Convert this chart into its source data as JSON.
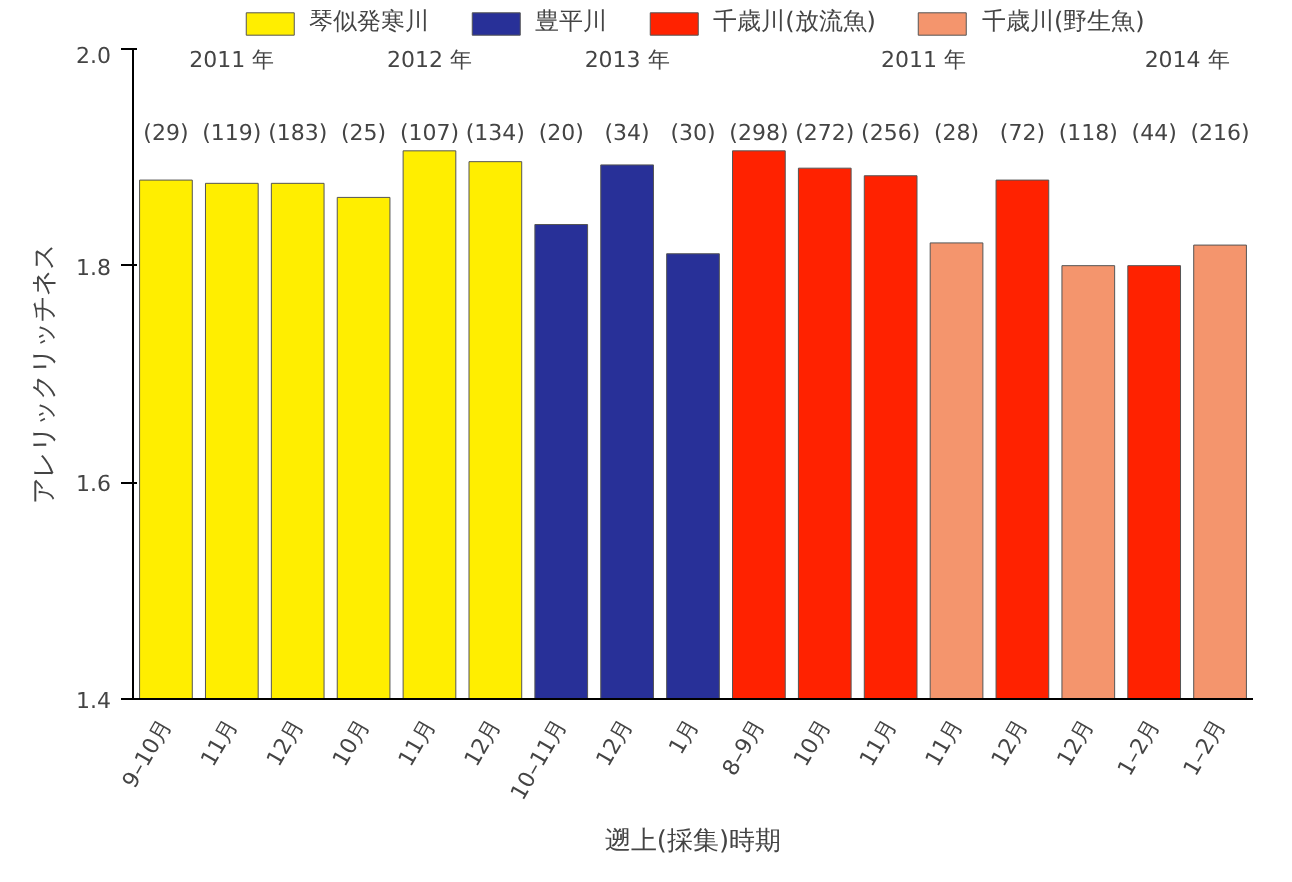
{
  "chart_data": {
    "type": "bar",
    "xlabel": "遡上(採集)時期",
    "ylabel": "アレリックリッチネス",
    "categories": [
      "9–10月",
      "11月",
      "12月",
      "10月",
      "11月",
      "12月",
      "10–11月",
      "12月",
      "1月",
      "8–9月",
      "10月",
      "11月",
      "11月",
      "12月",
      "12月",
      "1–2月",
      "1–2月"
    ],
    "series": [
      {
        "name": "琴似発寒川",
        "color": "#ffee00",
        "values": [
          1.879,
          1.876,
          1.876,
          1.863,
          1.906,
          1.896,
          null,
          null,
          null,
          null,
          null,
          null,
          null,
          null,
          null,
          null,
          null
        ]
      },
      {
        "name": "豊平川",
        "color": "#283098",
        "values": [
          null,
          null,
          null,
          null,
          null,
          null,
          1.838,
          1.893,
          1.811,
          null,
          null,
          null,
          null,
          null,
          null,
          null,
          null
        ]
      },
      {
        "name": "千歳川(放流魚)",
        "color": "#ff2200",
        "values": [
          null,
          null,
          null,
          null,
          null,
          null,
          null,
          null,
          null,
          1.906,
          1.89,
          1.883,
          null,
          1.879,
          null,
          1.8,
          null
        ]
      },
      {
        "name": "千歳川(野生魚)",
        "color": "#f4956d",
        "values": [
          null,
          null,
          null,
          null,
          null,
          null,
          null,
          null,
          null,
          null,
          null,
          null,
          1.821,
          null,
          1.8,
          null,
          1.819
        ]
      }
    ],
    "ylim": [
      1.4,
      2.0
    ],
    "yticks": [
      1.4,
      1.6,
      1.8,
      {
        "value": 2.0,
        "label": "2.0"
      }
    ],
    "grid": false,
    "legend": "top",
    "annotations": [
      "(29)",
      "(119)",
      "(183)",
      "(25)",
      "(107)",
      "(134)",
      "(20)",
      "(34)",
      "(30)",
      "(298)",
      "(272)",
      "(256)",
      "(28)",
      "(72)",
      "(118)",
      "(44)",
      "(216)",
      "2011 年",
      "2012 年",
      "2013 年",
      "2011 年",
      "2014 年"
    ]
  }
}
